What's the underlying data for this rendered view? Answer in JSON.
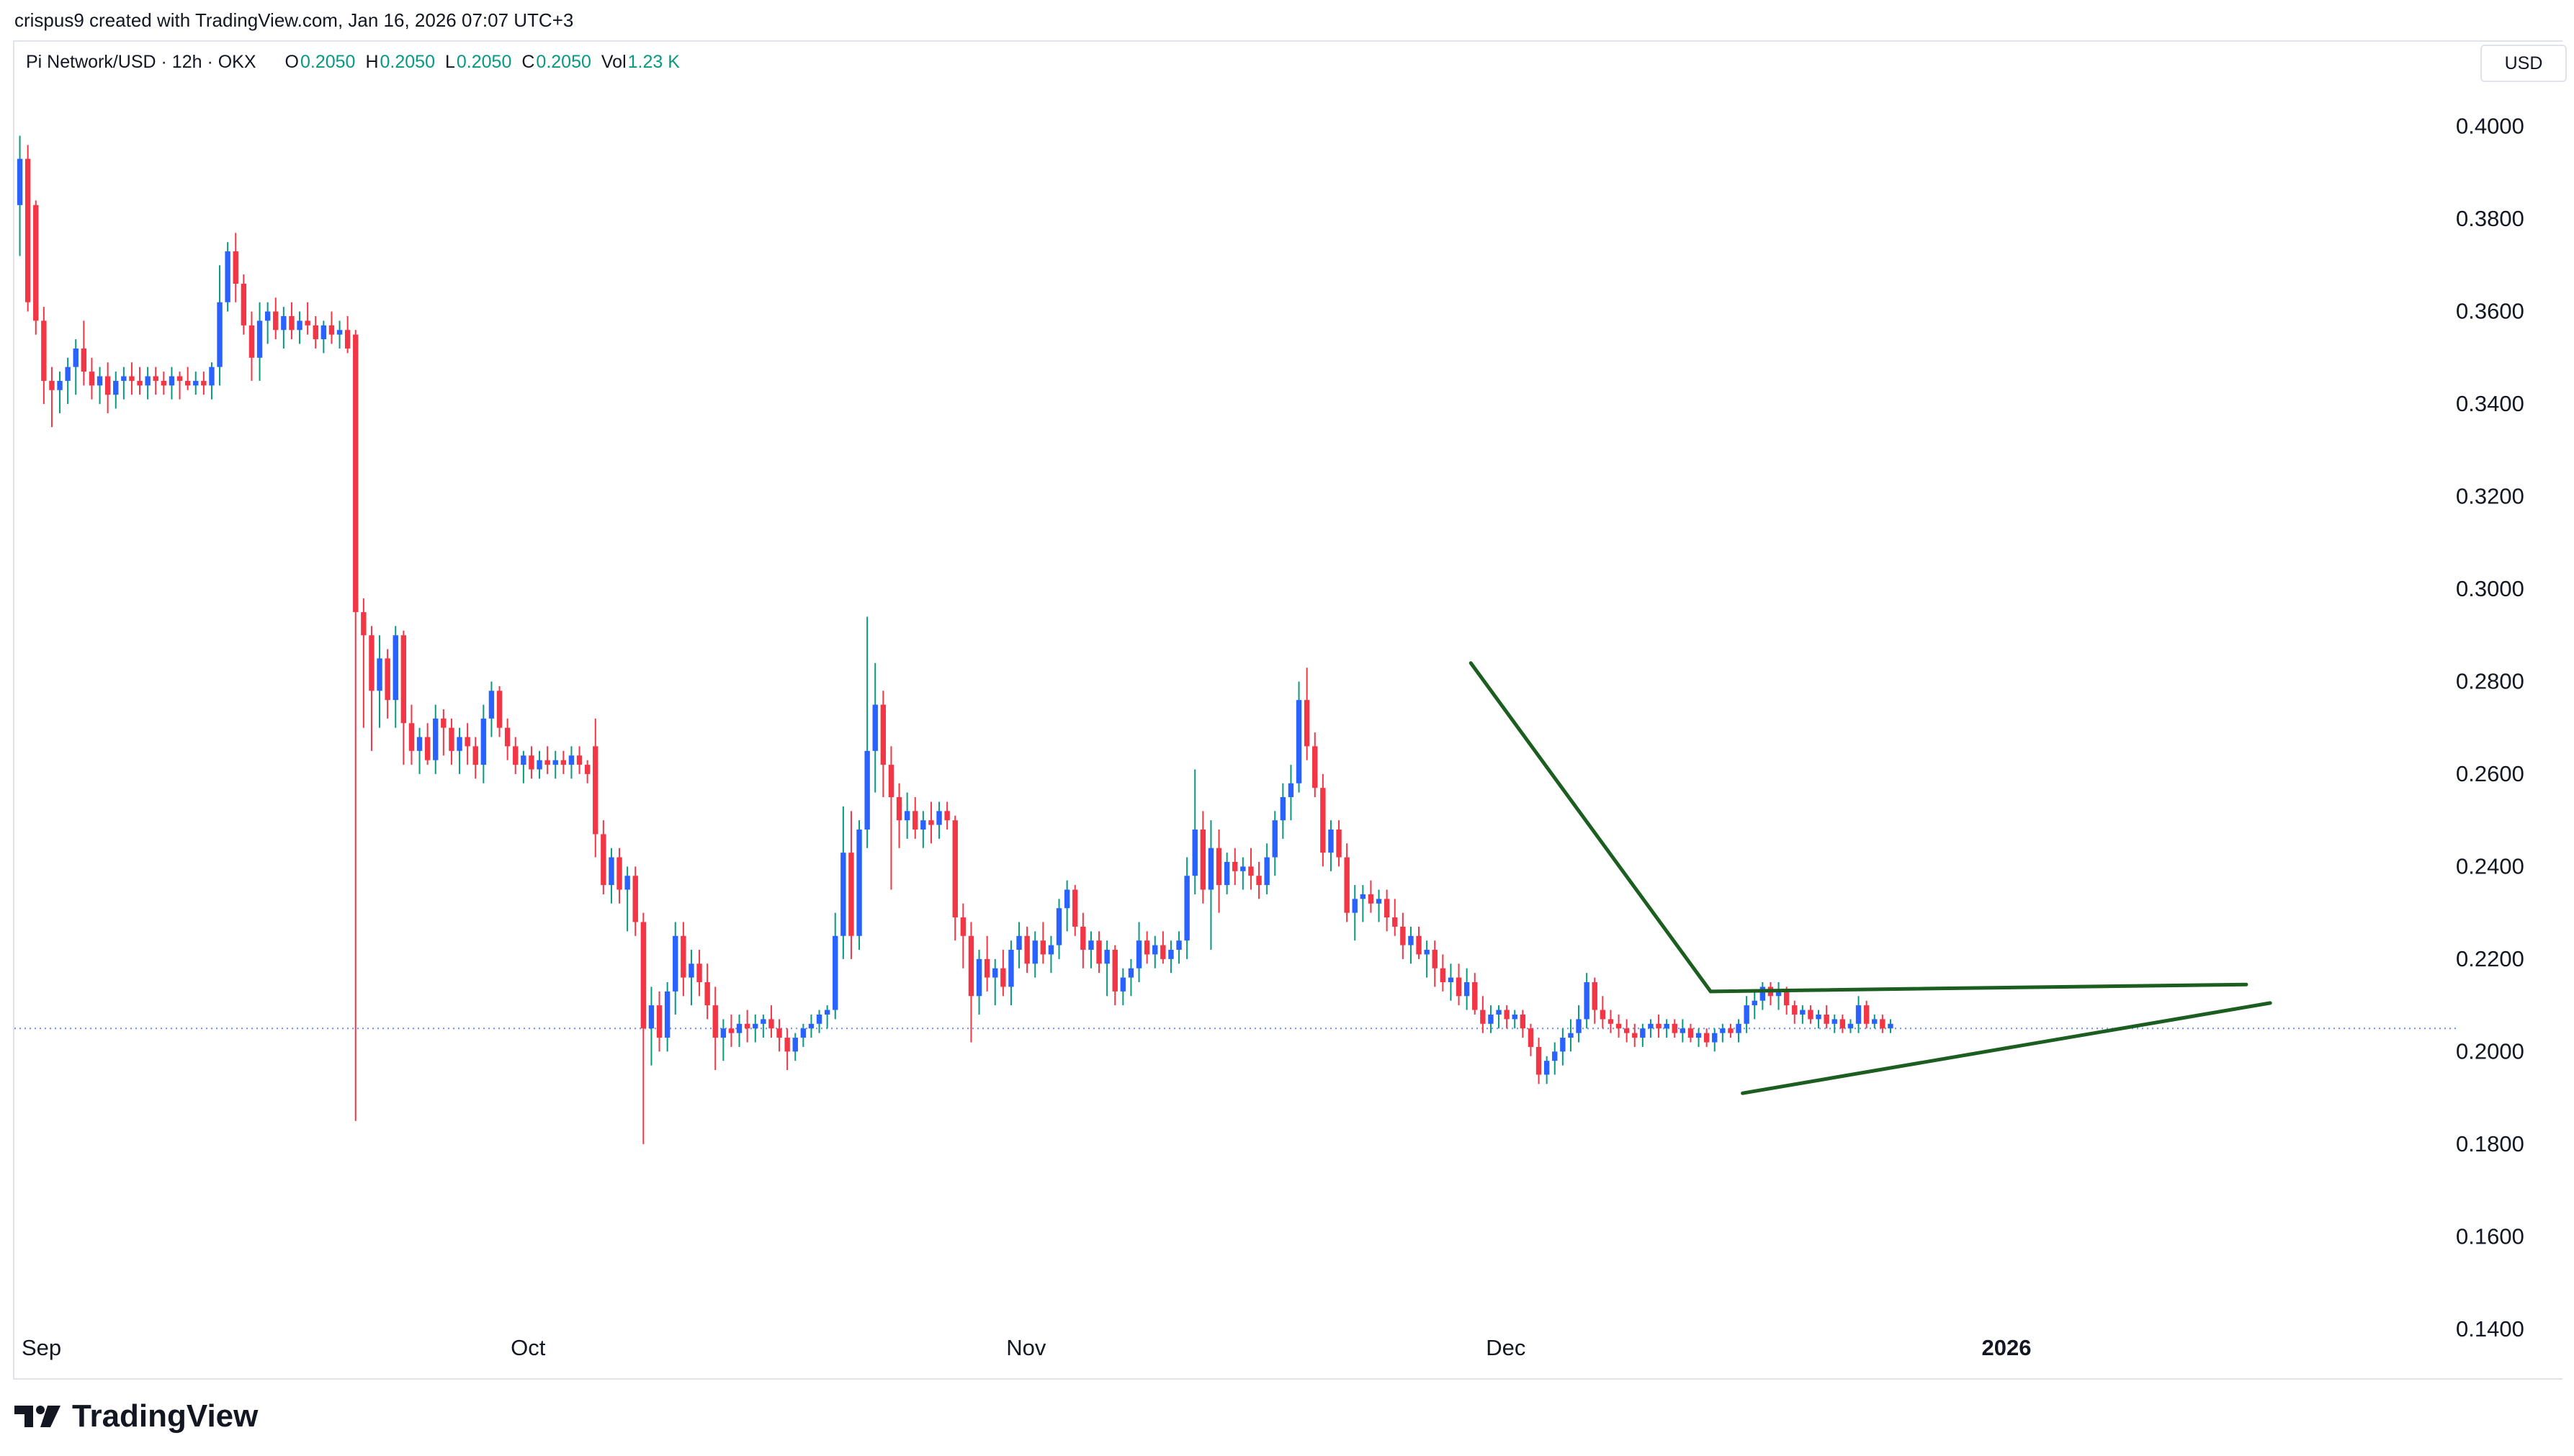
{
  "header": {
    "created_by": "crispus9 created with TradingView.com, Jan 16, 2026 07:07 UTC+3"
  },
  "legend": {
    "symbol": "Pi Network/USD · 12h · OKX",
    "o_label": "O",
    "o_value": "0.2050",
    "h_label": "H",
    "h_value": "0.2050",
    "l_label": "L",
    "l_value": "0.2050",
    "c_label": "C",
    "c_value": "0.2050",
    "vol_label": "Vol",
    "vol_value": "1.23 K"
  },
  "currency_button": "USD",
  "footer": {
    "brand": "TradingView"
  },
  "colors": {
    "up": "#2962ff",
    "down": "#f23645",
    "wick_up": "#089981",
    "trendline": "#1b5e20",
    "price_line": "#2962ff",
    "axis_text": "#131722"
  },
  "chart_data": {
    "type": "candlestick",
    "interval": "12h",
    "last_price": 0.205,
    "ylim": [
      0.13,
      0.418
    ],
    "y_ticks": [
      "0.4000",
      "0.3800",
      "0.3600",
      "0.3400",
      "0.3200",
      "0.3000",
      "0.2800",
      "0.2600",
      "0.2400",
      "0.2200",
      "0.2000",
      "0.1800",
      "0.1600",
      "0.1400"
    ],
    "x_ticks": [
      {
        "label": "Sep",
        "index": 0,
        "bold": false
      },
      {
        "label": "Oct",
        "index": 61,
        "bold": false
      },
      {
        "label": "Nov",
        "index": 123,
        "bold": false
      },
      {
        "label": "Dec",
        "index": 183,
        "bold": false
      },
      {
        "label": "2026",
        "index": 245,
        "bold": true
      }
    ],
    "candles": [
      [
        0.383,
        0.398,
        0.372,
        0.393
      ],
      [
        0.393,
        0.396,
        0.36,
        0.362
      ],
      [
        0.383,
        0.384,
        0.355,
        0.358
      ],
      [
        0.358,
        0.361,
        0.34,
        0.345
      ],
      [
        0.345,
        0.348,
        0.335,
        0.343
      ],
      [
        0.343,
        0.347,
        0.338,
        0.345
      ],
      [
        0.345,
        0.35,
        0.34,
        0.348
      ],
      [
        0.348,
        0.354,
        0.342,
        0.352
      ],
      [
        0.352,
        0.358,
        0.344,
        0.347
      ],
      [
        0.347,
        0.35,
        0.341,
        0.344
      ],
      [
        0.344,
        0.348,
        0.34,
        0.346
      ],
      [
        0.346,
        0.349,
        0.338,
        0.342
      ],
      [
        0.342,
        0.347,
        0.339,
        0.345
      ],
      [
        0.345,
        0.348,
        0.341,
        0.346
      ],
      [
        0.346,
        0.349,
        0.342,
        0.345
      ],
      [
        0.345,
        0.348,
        0.342,
        0.344
      ],
      [
        0.344,
        0.348,
        0.341,
        0.346
      ],
      [
        0.346,
        0.348,
        0.342,
        0.345
      ],
      [
        0.345,
        0.347,
        0.342,
        0.344
      ],
      [
        0.344,
        0.348,
        0.341,
        0.346
      ],
      [
        0.346,
        0.347,
        0.341,
        0.345
      ],
      [
        0.345,
        0.348,
        0.343,
        0.344
      ],
      [
        0.344,
        0.347,
        0.342,
        0.345
      ],
      [
        0.345,
        0.347,
        0.342,
        0.344
      ],
      [
        0.344,
        0.349,
        0.341,
        0.348
      ],
      [
        0.348,
        0.37,
        0.344,
        0.362
      ],
      [
        0.362,
        0.375,
        0.36,
        0.373
      ],
      [
        0.373,
        0.377,
        0.362,
        0.366
      ],
      [
        0.366,
        0.368,
        0.355,
        0.357
      ],
      [
        0.357,
        0.36,
        0.345,
        0.35
      ],
      [
        0.35,
        0.362,
        0.345,
        0.358
      ],
      [
        0.358,
        0.362,
        0.353,
        0.36
      ],
      [
        0.36,
        0.363,
        0.354,
        0.356
      ],
      [
        0.356,
        0.361,
        0.352,
        0.359
      ],
      [
        0.359,
        0.362,
        0.354,
        0.356
      ],
      [
        0.356,
        0.36,
        0.353,
        0.358
      ],
      [
        0.358,
        0.362,
        0.355,
        0.357
      ],
      [
        0.357,
        0.359,
        0.352,
        0.354
      ],
      [
        0.354,
        0.358,
        0.351,
        0.357
      ],
      [
        0.357,
        0.36,
        0.353,
        0.355
      ],
      [
        0.355,
        0.358,
        0.352,
        0.356
      ],
      [
        0.356,
        0.359,
        0.351,
        0.352
      ],
      [
        0.355,
        0.356,
        0.185,
        0.295
      ],
      [
        0.295,
        0.298,
        0.27,
        0.29
      ],
      [
        0.29,
        0.292,
        0.265,
        0.278
      ],
      [
        0.278,
        0.29,
        0.27,
        0.285
      ],
      [
        0.285,
        0.287,
        0.272,
        0.276
      ],
      [
        0.276,
        0.292,
        0.27,
        0.29
      ],
      [
        0.29,
        0.291,
        0.262,
        0.271
      ],
      [
        0.271,
        0.275,
        0.262,
        0.265
      ],
      [
        0.265,
        0.27,
        0.26,
        0.268
      ],
      [
        0.268,
        0.271,
        0.262,
        0.263
      ],
      [
        0.263,
        0.275,
        0.26,
        0.272
      ],
      [
        0.272,
        0.274,
        0.264,
        0.27
      ],
      [
        0.27,
        0.272,
        0.262,
        0.265
      ],
      [
        0.265,
        0.27,
        0.26,
        0.268
      ],
      [
        0.268,
        0.271,
        0.262,
        0.266
      ],
      [
        0.266,
        0.268,
        0.259,
        0.262
      ],
      [
        0.262,
        0.275,
        0.258,
        0.272
      ],
      [
        0.272,
        0.28,
        0.268,
        0.278
      ],
      [
        0.278,
        0.279,
        0.268,
        0.27
      ],
      [
        0.27,
        0.272,
        0.263,
        0.266
      ],
      [
        0.266,
        0.268,
        0.26,
        0.262
      ],
      [
        0.262,
        0.265,
        0.258,
        0.264
      ],
      [
        0.264,
        0.266,
        0.259,
        0.261
      ],
      [
        0.261,
        0.265,
        0.259,
        0.263
      ],
      [
        0.263,
        0.266,
        0.26,
        0.262
      ],
      [
        0.262,
        0.265,
        0.259,
        0.263
      ],
      [
        0.263,
        0.265,
        0.26,
        0.262
      ],
      [
        0.262,
        0.266,
        0.259,
        0.264
      ],
      [
        0.264,
        0.266,
        0.26,
        0.262
      ],
      [
        0.262,
        0.263,
        0.258,
        0.26
      ],
      [
        0.266,
        0.272,
        0.242,
        0.247
      ],
      [
        0.247,
        0.25,
        0.234,
        0.236
      ],
      [
        0.236,
        0.244,
        0.232,
        0.242
      ],
      [
        0.242,
        0.244,
        0.232,
        0.235
      ],
      [
        0.235,
        0.24,
        0.226,
        0.238
      ],
      [
        0.238,
        0.24,
        0.225,
        0.228
      ],
      [
        0.228,
        0.23,
        0.18,
        0.205
      ],
      [
        0.205,
        0.214,
        0.197,
        0.21
      ],
      [
        0.21,
        0.213,
        0.2,
        0.203
      ],
      [
        0.203,
        0.215,
        0.2,
        0.213
      ],
      [
        0.213,
        0.228,
        0.208,
        0.225
      ],
      [
        0.225,
        0.228,
        0.212,
        0.216
      ],
      [
        0.216,
        0.222,
        0.21,
        0.219
      ],
      [
        0.219,
        0.222,
        0.212,
        0.215
      ],
      [
        0.215,
        0.219,
        0.207,
        0.21
      ],
      [
        0.21,
        0.214,
        0.196,
        0.203
      ],
      [
        0.203,
        0.207,
        0.198,
        0.205
      ],
      [
        0.205,
        0.208,
        0.201,
        0.204
      ],
      [
        0.204,
        0.208,
        0.201,
        0.206
      ],
      [
        0.206,
        0.209,
        0.202,
        0.205
      ],
      [
        0.205,
        0.208,
        0.202,
        0.206
      ],
      [
        0.206,
        0.208,
        0.203,
        0.207
      ],
      [
        0.207,
        0.21,
        0.203,
        0.205
      ],
      [
        0.205,
        0.207,
        0.2,
        0.203
      ],
      [
        0.203,
        0.205,
        0.196,
        0.2
      ],
      [
        0.2,
        0.204,
        0.198,
        0.203
      ],
      [
        0.203,
        0.206,
        0.201,
        0.205
      ],
      [
        0.205,
        0.208,
        0.203,
        0.206
      ],
      [
        0.206,
        0.209,
        0.204,
        0.208
      ],
      [
        0.208,
        0.21,
        0.205,
        0.209
      ],
      [
        0.209,
        0.23,
        0.207,
        0.225
      ],
      [
        0.225,
        0.253,
        0.22,
        0.243
      ],
      [
        0.243,
        0.252,
        0.22,
        0.225
      ],
      [
        0.225,
        0.25,
        0.222,
        0.248
      ],
      [
        0.248,
        0.294,
        0.244,
        0.265
      ],
      [
        0.265,
        0.284,
        0.256,
        0.275
      ],
      [
        0.275,
        0.278,
        0.255,
        0.262
      ],
      [
        0.262,
        0.266,
        0.235,
        0.255
      ],
      [
        0.255,
        0.258,
        0.244,
        0.25
      ],
      [
        0.25,
        0.256,
        0.246,
        0.252
      ],
      [
        0.252,
        0.255,
        0.246,
        0.248
      ],
      [
        0.248,
        0.252,
        0.244,
        0.25
      ],
      [
        0.25,
        0.254,
        0.245,
        0.249
      ],
      [
        0.249,
        0.254,
        0.246,
        0.252
      ],
      [
        0.252,
        0.254,
        0.248,
        0.25
      ],
      [
        0.25,
        0.251,
        0.224,
        0.229
      ],
      [
        0.229,
        0.232,
        0.218,
        0.225
      ],
      [
        0.225,
        0.228,
        0.202,
        0.212
      ],
      [
        0.212,
        0.222,
        0.208,
        0.22
      ],
      [
        0.22,
        0.225,
        0.213,
        0.216
      ],
      [
        0.216,
        0.22,
        0.21,
        0.218
      ],
      [
        0.218,
        0.222,
        0.212,
        0.214
      ],
      [
        0.214,
        0.224,
        0.21,
        0.222
      ],
      [
        0.222,
        0.228,
        0.218,
        0.225
      ],
      [
        0.225,
        0.227,
        0.217,
        0.219
      ],
      [
        0.219,
        0.226,
        0.216,
        0.224
      ],
      [
        0.224,
        0.228,
        0.219,
        0.221
      ],
      [
        0.221,
        0.225,
        0.217,
        0.223
      ],
      [
        0.223,
        0.233,
        0.22,
        0.231
      ],
      [
        0.231,
        0.237,
        0.226,
        0.235
      ],
      [
        0.235,
        0.236,
        0.225,
        0.227
      ],
      [
        0.227,
        0.23,
        0.218,
        0.222
      ],
      [
        0.222,
        0.226,
        0.218,
        0.224
      ],
      [
        0.224,
        0.226,
        0.217,
        0.219
      ],
      [
        0.219,
        0.224,
        0.212,
        0.222
      ],
      [
        0.222,
        0.223,
        0.21,
        0.213
      ],
      [
        0.213,
        0.218,
        0.21,
        0.216
      ],
      [
        0.216,
        0.22,
        0.212,
        0.218
      ],
      [
        0.218,
        0.228,
        0.215,
        0.224
      ],
      [
        0.224,
        0.226,
        0.219,
        0.221
      ],
      [
        0.221,
        0.225,
        0.218,
        0.223
      ],
      [
        0.223,
        0.226,
        0.219,
        0.22
      ],
      [
        0.22,
        0.224,
        0.217,
        0.222
      ],
      [
        0.222,
        0.226,
        0.219,
        0.224
      ],
      [
        0.224,
        0.242,
        0.22,
        0.238
      ],
      [
        0.238,
        0.261,
        0.234,
        0.248
      ],
      [
        0.248,
        0.252,
        0.232,
        0.235
      ],
      [
        0.235,
        0.25,
        0.222,
        0.244
      ],
      [
        0.244,
        0.248,
        0.23,
        0.236
      ],
      [
        0.236,
        0.243,
        0.234,
        0.241
      ],
      [
        0.241,
        0.244,
        0.236,
        0.239
      ],
      [
        0.239,
        0.242,
        0.235,
        0.24
      ],
      [
        0.24,
        0.244,
        0.235,
        0.238
      ],
      [
        0.238,
        0.241,
        0.233,
        0.236
      ],
      [
        0.236,
        0.245,
        0.234,
        0.242
      ],
      [
        0.242,
        0.252,
        0.238,
        0.25
      ],
      [
        0.25,
        0.258,
        0.246,
        0.255
      ],
      [
        0.255,
        0.262,
        0.25,
        0.258
      ],
      [
        0.258,
        0.28,
        0.256,
        0.276
      ],
      [
        0.276,
        0.283,
        0.263,
        0.266
      ],
      [
        0.266,
        0.269,
        0.255,
        0.257
      ],
      [
        0.257,
        0.26,
        0.24,
        0.243
      ],
      [
        0.243,
        0.25,
        0.239,
        0.248
      ],
      [
        0.248,
        0.25,
        0.24,
        0.242
      ],
      [
        0.242,
        0.245,
        0.228,
        0.23
      ],
      [
        0.23,
        0.236,
        0.224,
        0.233
      ],
      [
        0.233,
        0.236,
        0.228,
        0.234
      ],
      [
        0.234,
        0.237,
        0.23,
        0.232
      ],
      [
        0.232,
        0.235,
        0.228,
        0.233
      ],
      [
        0.233,
        0.235,
        0.226,
        0.229
      ],
      [
        0.229,
        0.233,
        0.225,
        0.227
      ],
      [
        0.227,
        0.23,
        0.22,
        0.223
      ],
      [
        0.223,
        0.227,
        0.219,
        0.225
      ],
      [
        0.225,
        0.227,
        0.22,
        0.221
      ],
      [
        0.221,
        0.224,
        0.216,
        0.222
      ],
      [
        0.222,
        0.224,
        0.214,
        0.218
      ],
      [
        0.218,
        0.221,
        0.213,
        0.215
      ],
      [
        0.215,
        0.219,
        0.211,
        0.216
      ],
      [
        0.216,
        0.219,
        0.21,
        0.212
      ],
      [
        0.212,
        0.218,
        0.209,
        0.215
      ],
      [
        0.215,
        0.217,
        0.208,
        0.209
      ],
      [
        0.209,
        0.212,
        0.204,
        0.206
      ],
      [
        0.206,
        0.21,
        0.204,
        0.208
      ],
      [
        0.208,
        0.21,
        0.205,
        0.209
      ],
      [
        0.209,
        0.21,
        0.205,
        0.207
      ],
      [
        0.207,
        0.209,
        0.205,
        0.208
      ],
      [
        0.208,
        0.209,
        0.203,
        0.205
      ],
      [
        0.205,
        0.206,
        0.199,
        0.201
      ],
      [
        0.201,
        0.203,
        0.193,
        0.195
      ],
      [
        0.195,
        0.199,
        0.193,
        0.198
      ],
      [
        0.198,
        0.202,
        0.195,
        0.2
      ],
      [
        0.2,
        0.205,
        0.197,
        0.203
      ],
      [
        0.203,
        0.207,
        0.2,
        0.204
      ],
      [
        0.204,
        0.21,
        0.202,
        0.207
      ],
      [
        0.207,
        0.217,
        0.205,
        0.215
      ],
      [
        0.215,
        0.216,
        0.206,
        0.209
      ],
      [
        0.209,
        0.212,
        0.205,
        0.207
      ],
      [
        0.207,
        0.209,
        0.204,
        0.206
      ],
      [
        0.206,
        0.208,
        0.203,
        0.205
      ],
      [
        0.205,
        0.207,
        0.202,
        0.204
      ],
      [
        0.204,
        0.206,
        0.201,
        0.203
      ],
      [
        0.203,
        0.206,
        0.201,
        0.205
      ],
      [
        0.205,
        0.207,
        0.203,
        0.206
      ],
      [
        0.206,
        0.208,
        0.203,
        0.205
      ],
      [
        0.205,
        0.207,
        0.203,
        0.206
      ],
      [
        0.206,
        0.207,
        0.203,
        0.204
      ],
      [
        0.204,
        0.207,
        0.202,
        0.205
      ],
      [
        0.205,
        0.206,
        0.202,
        0.203
      ],
      [
        0.203,
        0.205,
        0.201,
        0.204
      ],
      [
        0.204,
        0.205,
        0.201,
        0.202
      ],
      [
        0.202,
        0.205,
        0.2,
        0.204
      ],
      [
        0.204,
        0.206,
        0.202,
        0.205
      ],
      [
        0.205,
        0.206,
        0.203,
        0.204
      ],
      [
        0.204,
        0.207,
        0.202,
        0.206
      ],
      [
        0.206,
        0.212,
        0.204,
        0.21
      ],
      [
        0.21,
        0.213,
        0.207,
        0.211
      ],
      [
        0.211,
        0.215,
        0.209,
        0.214
      ],
      [
        0.214,
        0.215,
        0.21,
        0.212
      ],
      [
        0.212,
        0.215,
        0.209,
        0.213
      ],
      [
        0.213,
        0.214,
        0.208,
        0.21
      ],
      [
        0.21,
        0.211,
        0.206,
        0.208
      ],
      [
        0.208,
        0.21,
        0.206,
        0.209
      ],
      [
        0.209,
        0.21,
        0.206,
        0.207
      ],
      [
        0.207,
        0.209,
        0.205,
        0.208
      ],
      [
        0.208,
        0.21,
        0.205,
        0.206
      ],
      [
        0.206,
        0.208,
        0.204,
        0.207
      ],
      [
        0.207,
        0.208,
        0.204,
        0.205
      ],
      [
        0.205,
        0.207,
        0.204,
        0.206
      ],
      [
        0.206,
        0.212,
        0.204,
        0.21
      ],
      [
        0.21,
        0.211,
        0.205,
        0.206
      ],
      [
        0.206,
        0.208,
        0.205,
        0.207
      ],
      [
        0.207,
        0.208,
        0.204,
        0.205
      ],
      [
        0.205,
        0.207,
        0.204,
        0.206
      ]
    ],
    "trendlines": [
      {
        "name": "drop-line",
        "from": {
          "index": 182,
          "price": 0.284
        },
        "to": {
          "index": 212,
          "price": 0.213
        }
      },
      {
        "name": "upper-triangle-line",
        "from": {
          "index": 212,
          "price": 0.213
        },
        "to": {
          "index": 279,
          "price": 0.2145
        }
      },
      {
        "name": "lower-triangle-line",
        "from": {
          "index": 216,
          "price": 0.191
        },
        "to": {
          "index": 282,
          "price": 0.2105
        }
      }
    ]
  }
}
